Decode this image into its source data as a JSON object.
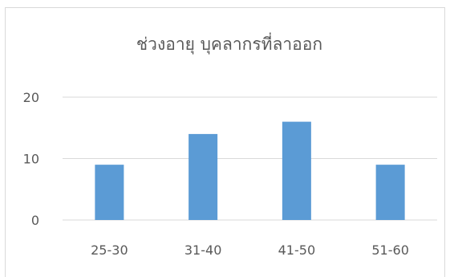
{
  "chart_data": {
    "type": "bar",
    "title": "ช่วงอายุ บุคลากรที่ลาออก",
    "categories": [
      "25-30",
      "31-40",
      "41-50",
      "51-60"
    ],
    "values": [
      9,
      14,
      16,
      9
    ],
    "xlabel": "",
    "ylabel": "",
    "ylim": [
      0,
      20
    ],
    "yticks": [
      0,
      10,
      20
    ],
    "grid": true,
    "legend": "none",
    "colors": {
      "bar": "#5b9bd5",
      "grid": "#d9d9d9",
      "text": "#595959"
    }
  }
}
